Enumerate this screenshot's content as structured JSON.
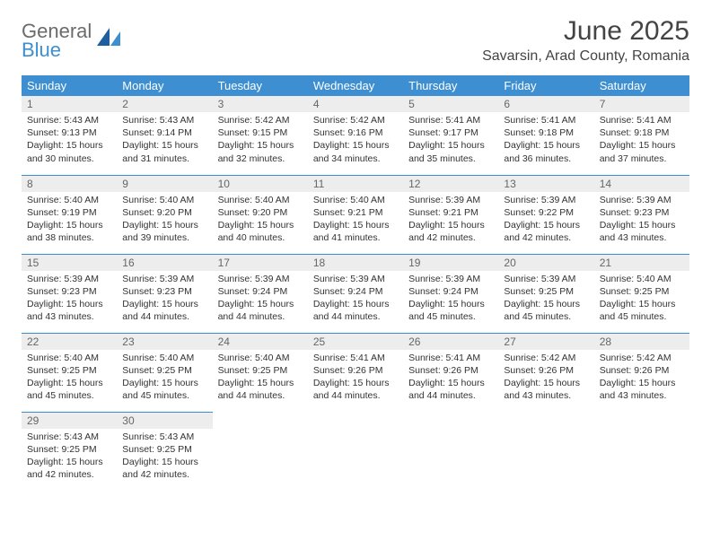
{
  "logo": {
    "textTop": "General",
    "textBottom": "Blue"
  },
  "title": "June 2025",
  "location": "Savarsin, Arad County, Romania",
  "colors": {
    "header_bg": "#3d8fd1",
    "row_sep": "#3d8fd1",
    "daynum_bg": "#ededed",
    "text": "#333333",
    "background": "#ffffff"
  },
  "weekdays": [
    "Sunday",
    "Monday",
    "Tuesday",
    "Wednesday",
    "Thursday",
    "Friday",
    "Saturday"
  ],
  "weeks": [
    [
      {
        "day": "1",
        "sunrise": "Sunrise: 5:43 AM",
        "sunset": "Sunset: 9:13 PM",
        "daylight": "Daylight: 15 hours and 30 minutes."
      },
      {
        "day": "2",
        "sunrise": "Sunrise: 5:43 AM",
        "sunset": "Sunset: 9:14 PM",
        "daylight": "Daylight: 15 hours and 31 minutes."
      },
      {
        "day": "3",
        "sunrise": "Sunrise: 5:42 AM",
        "sunset": "Sunset: 9:15 PM",
        "daylight": "Daylight: 15 hours and 32 minutes."
      },
      {
        "day": "4",
        "sunrise": "Sunrise: 5:42 AM",
        "sunset": "Sunset: 9:16 PM",
        "daylight": "Daylight: 15 hours and 34 minutes."
      },
      {
        "day": "5",
        "sunrise": "Sunrise: 5:41 AM",
        "sunset": "Sunset: 9:17 PM",
        "daylight": "Daylight: 15 hours and 35 minutes."
      },
      {
        "day": "6",
        "sunrise": "Sunrise: 5:41 AM",
        "sunset": "Sunset: 9:18 PM",
        "daylight": "Daylight: 15 hours and 36 minutes."
      },
      {
        "day": "7",
        "sunrise": "Sunrise: 5:41 AM",
        "sunset": "Sunset: 9:18 PM",
        "daylight": "Daylight: 15 hours and 37 minutes."
      }
    ],
    [
      {
        "day": "8",
        "sunrise": "Sunrise: 5:40 AM",
        "sunset": "Sunset: 9:19 PM",
        "daylight": "Daylight: 15 hours and 38 minutes."
      },
      {
        "day": "9",
        "sunrise": "Sunrise: 5:40 AM",
        "sunset": "Sunset: 9:20 PM",
        "daylight": "Daylight: 15 hours and 39 minutes."
      },
      {
        "day": "10",
        "sunrise": "Sunrise: 5:40 AM",
        "sunset": "Sunset: 9:20 PM",
        "daylight": "Daylight: 15 hours and 40 minutes."
      },
      {
        "day": "11",
        "sunrise": "Sunrise: 5:40 AM",
        "sunset": "Sunset: 9:21 PM",
        "daylight": "Daylight: 15 hours and 41 minutes."
      },
      {
        "day": "12",
        "sunrise": "Sunrise: 5:39 AM",
        "sunset": "Sunset: 9:21 PM",
        "daylight": "Daylight: 15 hours and 42 minutes."
      },
      {
        "day": "13",
        "sunrise": "Sunrise: 5:39 AM",
        "sunset": "Sunset: 9:22 PM",
        "daylight": "Daylight: 15 hours and 42 minutes."
      },
      {
        "day": "14",
        "sunrise": "Sunrise: 5:39 AM",
        "sunset": "Sunset: 9:23 PM",
        "daylight": "Daylight: 15 hours and 43 minutes."
      }
    ],
    [
      {
        "day": "15",
        "sunrise": "Sunrise: 5:39 AM",
        "sunset": "Sunset: 9:23 PM",
        "daylight": "Daylight: 15 hours and 43 minutes."
      },
      {
        "day": "16",
        "sunrise": "Sunrise: 5:39 AM",
        "sunset": "Sunset: 9:23 PM",
        "daylight": "Daylight: 15 hours and 44 minutes."
      },
      {
        "day": "17",
        "sunrise": "Sunrise: 5:39 AM",
        "sunset": "Sunset: 9:24 PM",
        "daylight": "Daylight: 15 hours and 44 minutes."
      },
      {
        "day": "18",
        "sunrise": "Sunrise: 5:39 AM",
        "sunset": "Sunset: 9:24 PM",
        "daylight": "Daylight: 15 hours and 44 minutes."
      },
      {
        "day": "19",
        "sunrise": "Sunrise: 5:39 AM",
        "sunset": "Sunset: 9:24 PM",
        "daylight": "Daylight: 15 hours and 45 minutes."
      },
      {
        "day": "20",
        "sunrise": "Sunrise: 5:39 AM",
        "sunset": "Sunset: 9:25 PM",
        "daylight": "Daylight: 15 hours and 45 minutes."
      },
      {
        "day": "21",
        "sunrise": "Sunrise: 5:40 AM",
        "sunset": "Sunset: 9:25 PM",
        "daylight": "Daylight: 15 hours and 45 minutes."
      }
    ],
    [
      {
        "day": "22",
        "sunrise": "Sunrise: 5:40 AM",
        "sunset": "Sunset: 9:25 PM",
        "daylight": "Daylight: 15 hours and 45 minutes."
      },
      {
        "day": "23",
        "sunrise": "Sunrise: 5:40 AM",
        "sunset": "Sunset: 9:25 PM",
        "daylight": "Daylight: 15 hours and 45 minutes."
      },
      {
        "day": "24",
        "sunrise": "Sunrise: 5:40 AM",
        "sunset": "Sunset: 9:25 PM",
        "daylight": "Daylight: 15 hours and 44 minutes."
      },
      {
        "day": "25",
        "sunrise": "Sunrise: 5:41 AM",
        "sunset": "Sunset: 9:26 PM",
        "daylight": "Daylight: 15 hours and 44 minutes."
      },
      {
        "day": "26",
        "sunrise": "Sunrise: 5:41 AM",
        "sunset": "Sunset: 9:26 PM",
        "daylight": "Daylight: 15 hours and 44 minutes."
      },
      {
        "day": "27",
        "sunrise": "Sunrise: 5:42 AM",
        "sunset": "Sunset: 9:26 PM",
        "daylight": "Daylight: 15 hours and 43 minutes."
      },
      {
        "day": "28",
        "sunrise": "Sunrise: 5:42 AM",
        "sunset": "Sunset: 9:26 PM",
        "daylight": "Daylight: 15 hours and 43 minutes."
      }
    ],
    [
      {
        "day": "29",
        "sunrise": "Sunrise: 5:43 AM",
        "sunset": "Sunset: 9:25 PM",
        "daylight": "Daylight: 15 hours and 42 minutes."
      },
      {
        "day": "30",
        "sunrise": "Sunrise: 5:43 AM",
        "sunset": "Sunset: 9:25 PM",
        "daylight": "Daylight: 15 hours and 42 minutes."
      },
      null,
      null,
      null,
      null,
      null
    ]
  ]
}
